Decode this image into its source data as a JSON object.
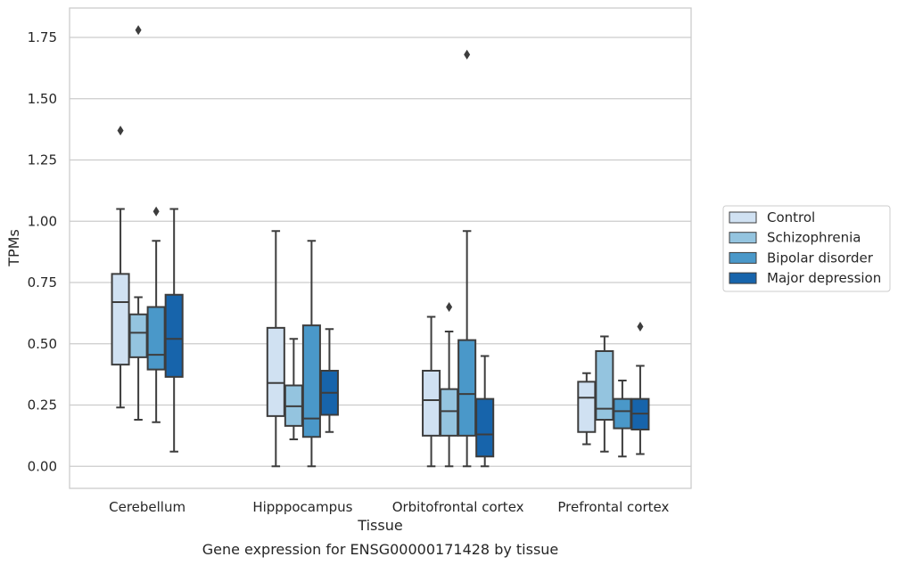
{
  "chart_data": {
    "type": "box",
    "xlabel": "Tissue",
    "ylabel": "TPMs",
    "caption": "Gene expression for ENSG00000171428 by tissue",
    "ylim": [
      -0.09,
      1.87
    ],
    "yticks": [
      0.0,
      0.25,
      0.5,
      0.75,
      1.0,
      1.25,
      1.5,
      1.75
    ],
    "ytick_labels": [
      "0.00",
      "0.25",
      "0.50",
      "0.75",
      "1.00",
      "1.25",
      "1.50",
      "1.75"
    ],
    "grid": "horizontal",
    "legend_position": "right",
    "categories": [
      "Cerebellum",
      "Hipppocampus",
      "Orbitofrontal cortex",
      "Prefrontal cortex"
    ],
    "series": [
      {
        "name": "Control",
        "color": "#d0e1f2",
        "boxes": [
          {
            "whisker_low": 0.24,
            "q1": 0.415,
            "median": 0.67,
            "q3": 0.785,
            "whisker_high": 1.05,
            "outliers": [
              1.37
            ]
          },
          {
            "whisker_low": 0.0,
            "q1": 0.205,
            "median": 0.34,
            "q3": 0.565,
            "whisker_high": 0.96,
            "outliers": []
          },
          {
            "whisker_low": 0.0,
            "q1": 0.125,
            "median": 0.27,
            "q3": 0.39,
            "whisker_high": 0.61,
            "outliers": []
          },
          {
            "whisker_low": 0.09,
            "q1": 0.14,
            "median": 0.28,
            "q3": 0.345,
            "whisker_high": 0.38,
            "outliers": []
          }
        ]
      },
      {
        "name": "Schizophrenia",
        "color": "#94c4df",
        "boxes": [
          {
            "whisker_low": 0.19,
            "q1": 0.445,
            "median": 0.545,
            "q3": 0.62,
            "whisker_high": 0.69,
            "outliers": [
              1.78
            ]
          },
          {
            "whisker_low": 0.11,
            "q1": 0.165,
            "median": 0.245,
            "q3": 0.33,
            "whisker_high": 0.52,
            "outliers": []
          },
          {
            "whisker_low": 0.0,
            "q1": 0.125,
            "median": 0.225,
            "q3": 0.315,
            "whisker_high": 0.55,
            "outliers": [
              0.65
            ]
          },
          {
            "whisker_low": 0.06,
            "q1": 0.19,
            "median": 0.235,
            "q3": 0.47,
            "whisker_high": 0.53,
            "outliers": []
          }
        ]
      },
      {
        "name": "Bipolar disorder",
        "color": "#4a98c9",
        "boxes": [
          {
            "whisker_low": 0.18,
            "q1": 0.395,
            "median": 0.455,
            "q3": 0.65,
            "whisker_high": 0.92,
            "outliers": [
              1.04
            ]
          },
          {
            "whisker_low": 0.0,
            "q1": 0.12,
            "median": 0.195,
            "q3": 0.575,
            "whisker_high": 0.92,
            "outliers": []
          },
          {
            "whisker_low": 0.0,
            "q1": 0.125,
            "median": 0.295,
            "q3": 0.515,
            "whisker_high": 0.96,
            "outliers": [
              1.68
            ]
          },
          {
            "whisker_low": 0.04,
            "q1": 0.155,
            "median": 0.225,
            "q3": 0.275,
            "whisker_high": 0.35,
            "outliers": []
          }
        ]
      },
      {
        "name": "Major depression",
        "color": "#1764ab",
        "boxes": [
          {
            "whisker_low": 0.06,
            "q1": 0.365,
            "median": 0.52,
            "q3": 0.7,
            "whisker_high": 1.05,
            "outliers": []
          },
          {
            "whisker_low": 0.14,
            "q1": 0.21,
            "median": 0.3,
            "q3": 0.39,
            "whisker_high": 0.56,
            "outliers": []
          },
          {
            "whisker_low": 0.0,
            "q1": 0.04,
            "median": 0.13,
            "q3": 0.275,
            "whisker_high": 0.45,
            "outliers": []
          },
          {
            "whisker_low": 0.05,
            "q1": 0.15,
            "median": 0.215,
            "q3": 0.275,
            "whisker_high": 0.41,
            "outliers": [
              0.57
            ]
          }
        ]
      }
    ],
    "styles": {
      "line_color": "#3d3d3d",
      "grid_color": "#cccccc",
      "frame_color": "#cccccc",
      "outlier_color": "#3d3d3d"
    }
  }
}
